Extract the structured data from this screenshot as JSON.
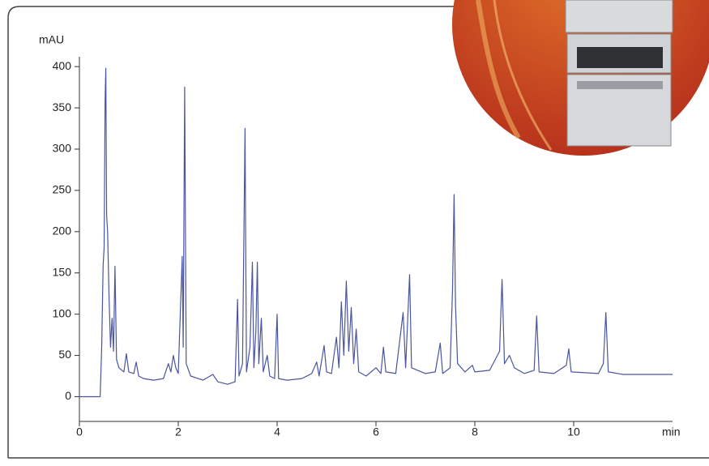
{
  "chart_data": {
    "type": "line",
    "y_label": "mAU",
    "x_label": "min",
    "xlim": [
      0,
      12
    ],
    "ylim": [
      -30,
      410
    ],
    "xticks": [
      0,
      2,
      4,
      6,
      8,
      10
    ],
    "yticks": [
      0,
      50,
      100,
      150,
      200,
      250,
      300,
      350,
      400
    ],
    "color": "#4a55a0",
    "x": [
      0,
      0.42,
      0.45,
      0.48,
      0.5,
      0.52,
      0.535,
      0.55,
      0.57,
      0.6,
      0.63,
      0.66,
      0.69,
      0.72,
      0.75,
      0.8,
      0.9,
      0.95,
      1.0,
      1.1,
      1.15,
      1.2,
      1.3,
      1.5,
      1.7,
      1.8,
      1.85,
      1.9,
      1.95,
      2.0,
      2.08,
      2.1,
      2.13,
      2.16,
      2.25,
      2.5,
      2.7,
      2.8,
      3.0,
      3.15,
      3.2,
      3.23,
      3.3,
      3.35,
      3.38,
      3.45,
      3.5,
      3.53,
      3.57,
      3.6,
      3.63,
      3.68,
      3.72,
      3.8,
      3.85,
      3.95,
      4.0,
      4.03,
      4.2,
      4.5,
      4.7,
      4.8,
      4.85,
      4.95,
      5.0,
      5.1,
      5.2,
      5.25,
      5.3,
      5.35,
      5.4,
      5.45,
      5.5,
      5.55,
      5.6,
      5.65,
      5.8,
      6.0,
      6.1,
      6.15,
      6.2,
      6.4,
      6.55,
      6.6,
      6.68,
      6.72,
      7.0,
      7.2,
      7.3,
      7.35,
      7.5,
      7.55,
      7.58,
      7.61,
      7.65,
      7.8,
      7.95,
      8.0,
      8.3,
      8.5,
      8.55,
      8.6,
      8.7,
      8.8,
      9.0,
      9.2,
      9.25,
      9.3,
      9.6,
      9.85,
      9.9,
      9.95,
      10.5,
      10.6,
      10.65,
      10.7,
      11.0,
      12.0
    ],
    "y": [
      0,
      0,
      60,
      160,
      180,
      360,
      398,
      220,
      200,
      120,
      60,
      95,
      55,
      158,
      45,
      35,
      30,
      52,
      30,
      28,
      42,
      25,
      22,
      20,
      22,
      40,
      30,
      50,
      35,
      28,
      170,
      60,
      375,
      40,
      25,
      20,
      27,
      18,
      15,
      18,
      118,
      25,
      40,
      325,
      30,
      60,
      163,
      35,
      80,
      163,
      40,
      95,
      30,
      50,
      25,
      22,
      100,
      22,
      20,
      22,
      28,
      42,
      25,
      62,
      30,
      28,
      72,
      35,
      115,
      50,
      140,
      55,
      108,
      40,
      82,
      30,
      25,
      35,
      28,
      60,
      30,
      28,
      102,
      35,
      148,
      35,
      28,
      30,
      65,
      28,
      35,
      130,
      245,
      110,
      40,
      30,
      38,
      30,
      32,
      55,
      142,
      40,
      50,
      35,
      28,
      32,
      98,
      30,
      28,
      38,
      58,
      30,
      28,
      40,
      102,
      30,
      27,
      27
    ]
  }
}
